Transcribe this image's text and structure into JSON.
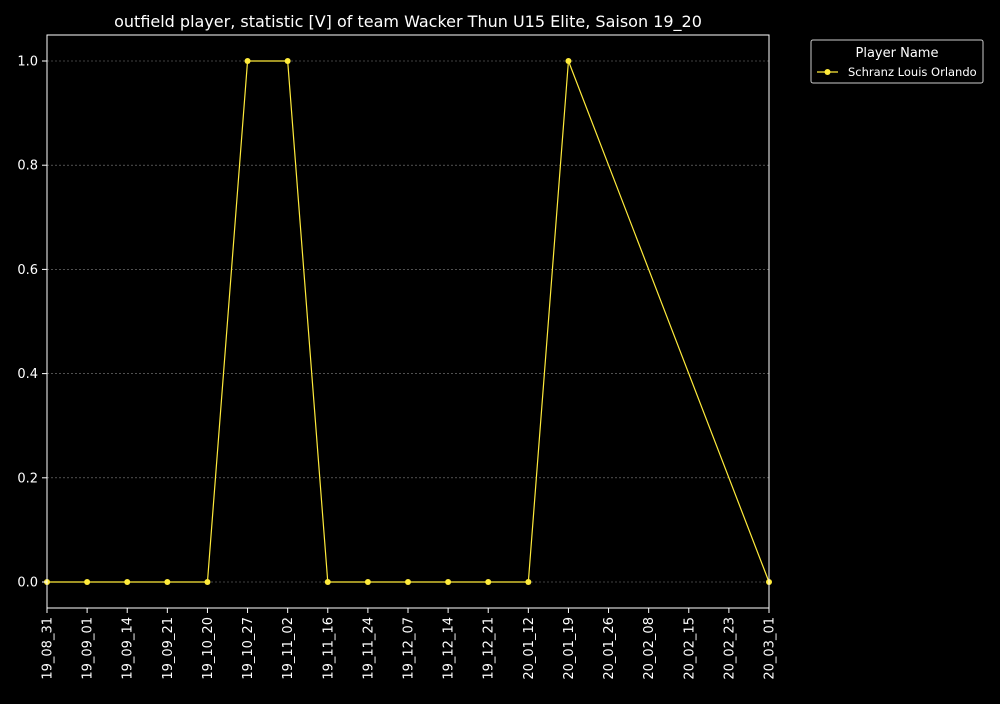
{
  "chart_data": {
    "type": "line",
    "title": "outfield player, statistic [V] of team Wacker Thun U15 Elite, Saison 19_20",
    "xlabel": "",
    "ylabel": "",
    "categories": [
      "19_08_31",
      "19_09_01",
      "19_09_14",
      "19_09_21",
      "19_10_20",
      "19_10_27",
      "19_11_02",
      "19_11_16",
      "19_11_24",
      "19_12_07",
      "19_12_14",
      "19_12_21",
      "20_01_12",
      "20_01_19",
      "20_01_26",
      "20_02_08",
      "20_02_15",
      "20_02_23",
      "20_03_01"
    ],
    "series": [
      {
        "name": "Schranz Louis Orlando",
        "values": [
          0,
          0,
          0,
          0,
          0,
          1,
          1,
          0,
          0,
          0,
          0,
          0,
          0,
          1,
          null,
          null,
          null,
          null,
          0
        ],
        "color": "#ffeb3b"
      }
    ],
    "ylim": [
      -0.05,
      1.05
    ],
    "yticks": [
      0.0,
      0.2,
      0.4,
      0.6,
      0.8,
      1.0
    ],
    "ytick_labels": [
      "0.0",
      "0.2",
      "0.4",
      "0.6",
      "0.8",
      "1.0"
    ],
    "grid": "horizontal dashed",
    "legend": {
      "title": "Player Name",
      "placement": "outside top-right"
    },
    "colors": {
      "background": "#000000",
      "axes": "#ffffff",
      "grid": "#808080",
      "series": "#ffeb3b"
    }
  }
}
